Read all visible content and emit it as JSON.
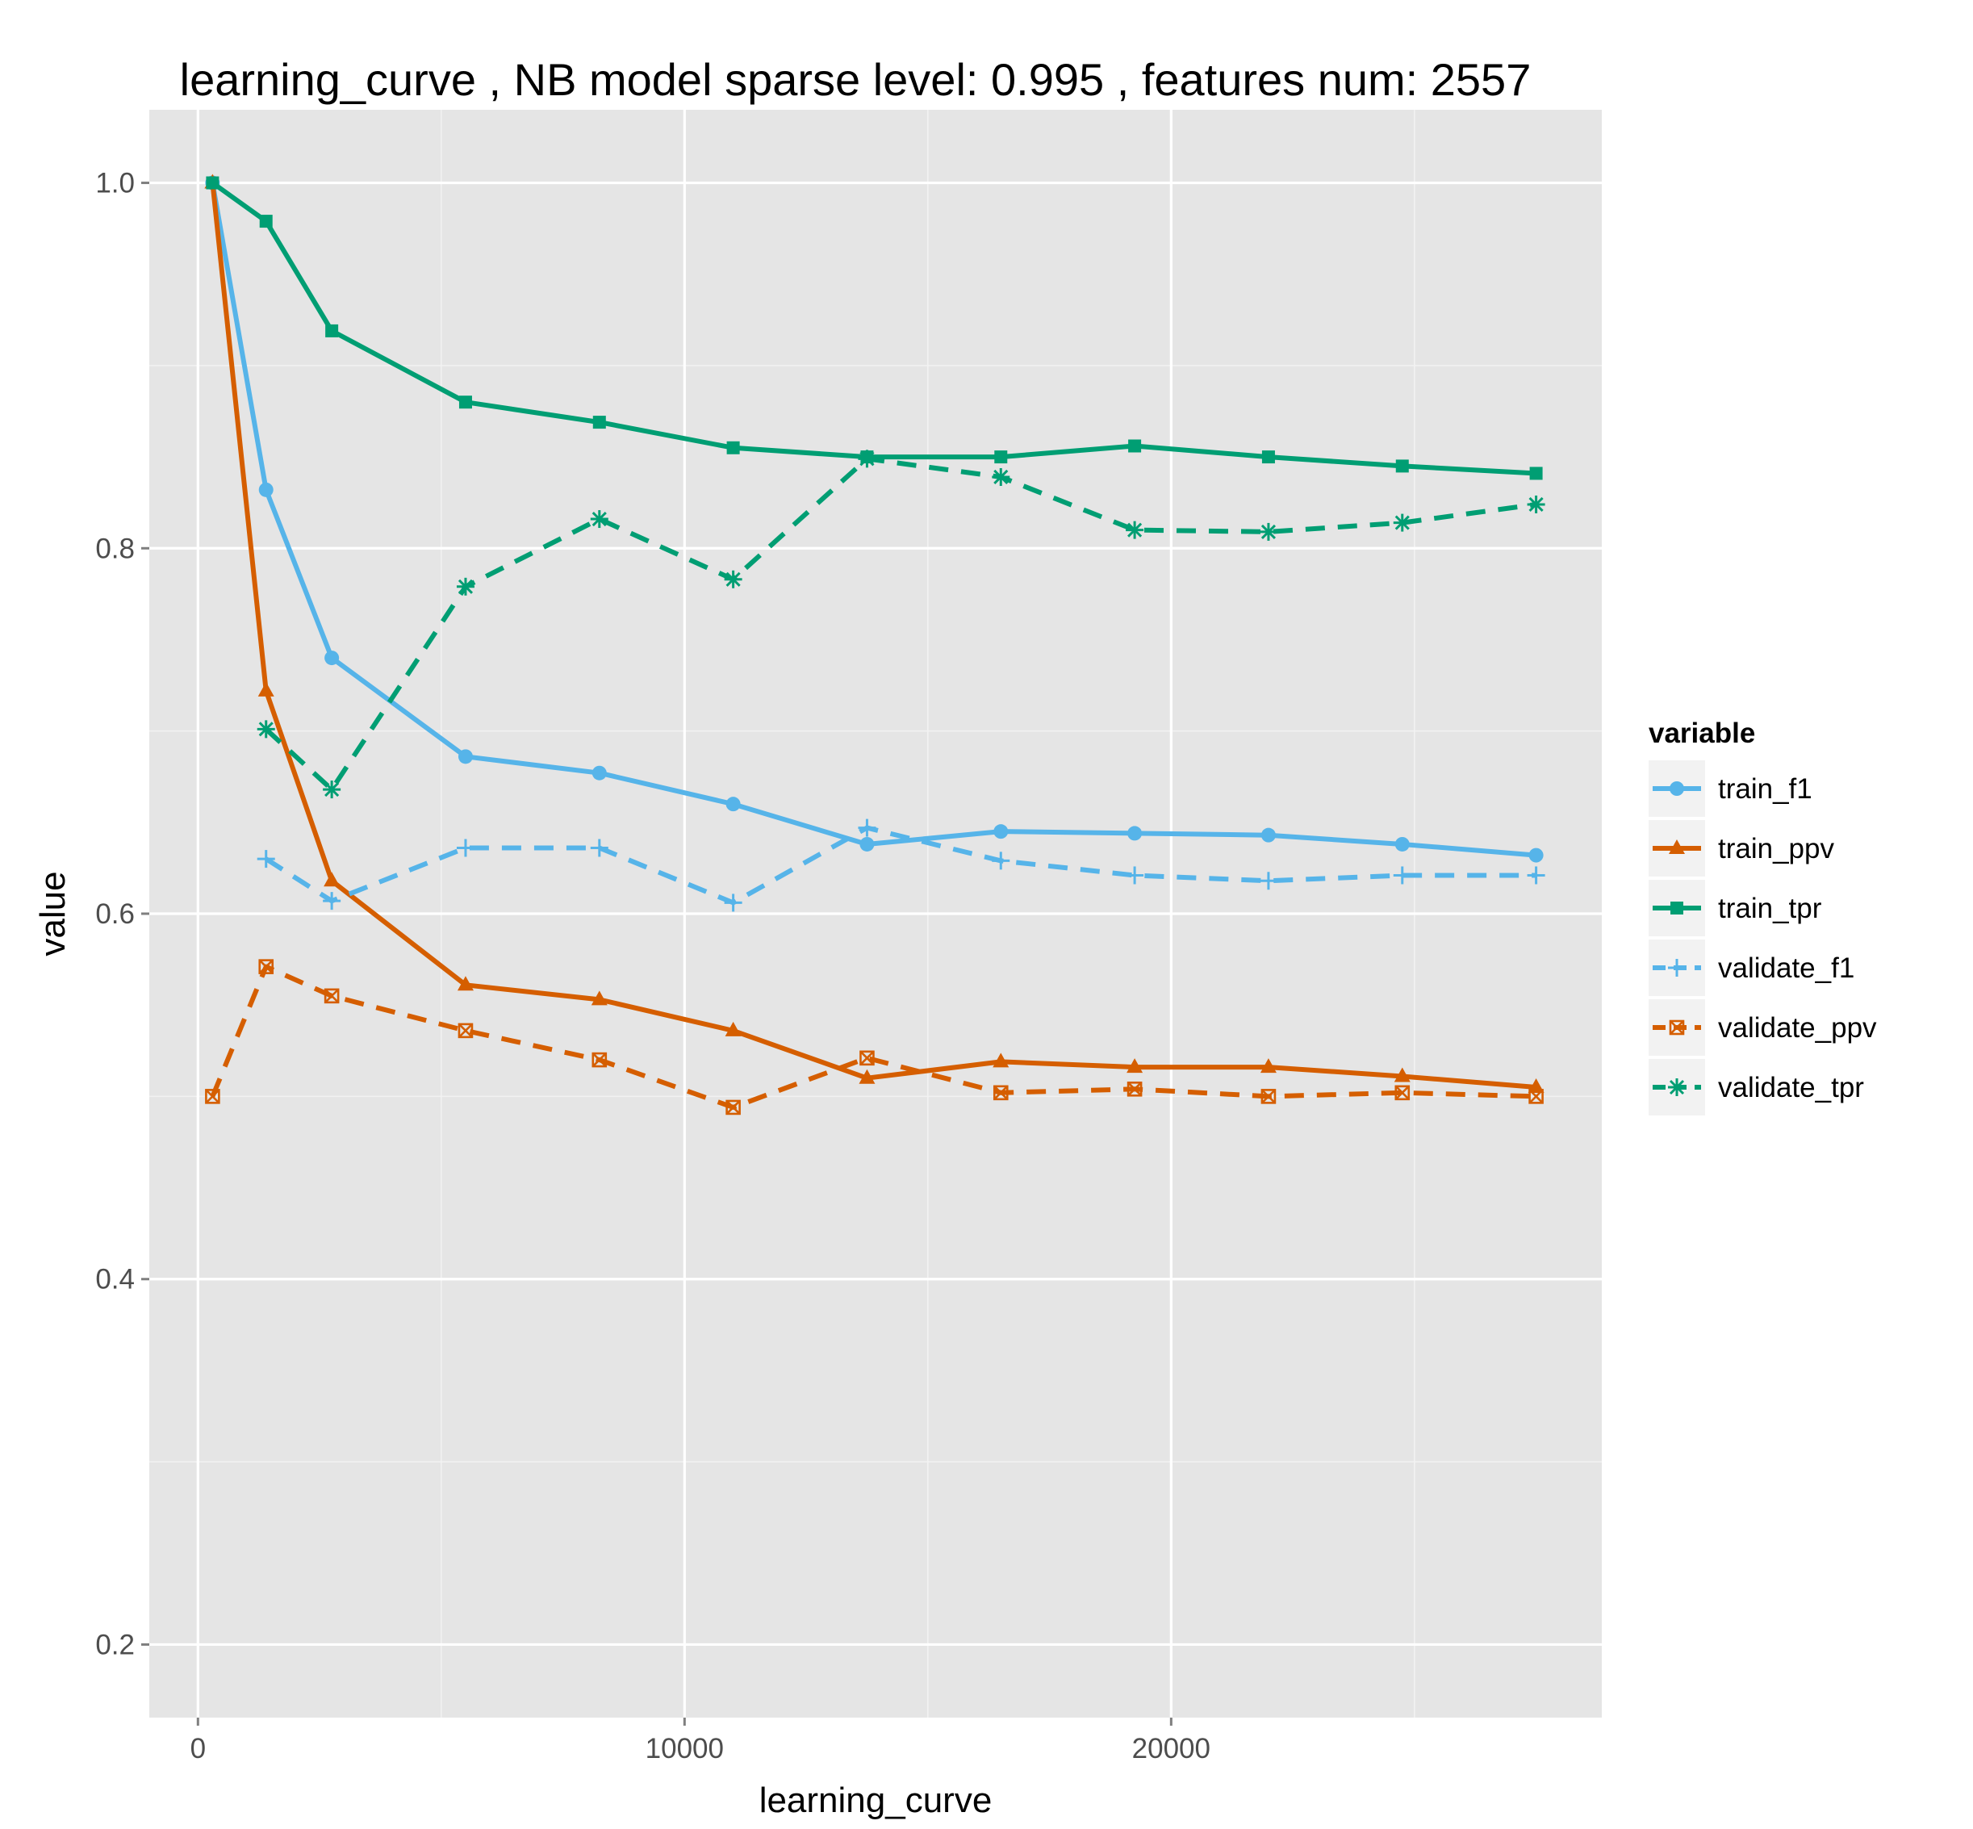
{
  "chart_data": {
    "type": "line",
    "title": "learning_curve ,  NB model sparse level: 0.995 , features num: 2557",
    "xlabel": "learning_curve",
    "ylabel": "value",
    "xlim": [
      -1000,
      28850
    ],
    "ylim": [
      0.16,
      1.04
    ],
    "x_ticks": [
      0,
      10000,
      20000
    ],
    "x_tick_labels": [
      "0",
      "10000",
      "20000"
    ],
    "x_minor_ticks": [
      5000,
      15000,
      25000
    ],
    "y_ticks": [
      0.2,
      0.4,
      0.6,
      0.8,
      1.0
    ],
    "y_tick_labels": [
      "0.2",
      "0.4",
      "0.6",
      "0.8",
      "1.0"
    ],
    "y_minor_ticks": [
      0.3,
      0.5,
      0.7,
      0.9
    ],
    "grid": true,
    "legend": {
      "title": "variable",
      "position": "right"
    },
    "series": [
      {
        "name": "train_f1",
        "color": "#56B4E9",
        "dash": "solid",
        "marker": "circle",
        "x": [
          300,
          1400,
          2750,
          5500,
          8250,
          11000,
          13750,
          16500,
          19250,
          22000,
          24750,
          27500
        ],
        "y": [
          1.0,
          0.832,
          0.74,
          0.686,
          0.677,
          0.66,
          0.638,
          0.645,
          0.644,
          0.643,
          0.638,
          0.632
        ]
      },
      {
        "name": "train_ppv",
        "color": "#D55E00",
        "dash": "solid",
        "marker": "triangle",
        "x": [
          300,
          1400,
          2750,
          5500,
          8250,
          11000,
          13750,
          16500,
          19250,
          22000,
          24750,
          27500
        ],
        "y": [
          1.0,
          0.722,
          0.618,
          0.561,
          0.553,
          0.536,
          0.51,
          0.519,
          0.516,
          0.516,
          0.511,
          0.505
        ]
      },
      {
        "name": "train_tpr",
        "color": "#009E73",
        "dash": "solid",
        "marker": "square",
        "x": [
          300,
          1400,
          2750,
          5500,
          8250,
          11000,
          13750,
          16500,
          19250,
          22000,
          24750,
          27500
        ],
        "y": [
          1.0,
          0.979,
          0.919,
          0.88,
          0.869,
          0.855,
          0.85,
          0.85,
          0.856,
          0.85,
          0.845,
          0.841
        ]
      },
      {
        "name": "validate_f1",
        "color": "#56B4E9",
        "dash": "dashed",
        "marker": "plus",
        "x": [
          1400,
          2750,
          5500,
          8250,
          11000,
          13750,
          16500,
          19250,
          22000,
          24750,
          27500
        ],
        "y": [
          0.63,
          0.607,
          0.636,
          0.636,
          0.606,
          0.647,
          0.629,
          0.621,
          0.618,
          0.621,
          0.621
        ]
      },
      {
        "name": "validate_ppv",
        "color": "#D55E00",
        "dash": "dashed",
        "marker": "square-x",
        "x": [
          300,
          1400,
          2750,
          5500,
          8250,
          11000,
          13750,
          16500,
          19250,
          22000,
          24750,
          27500
        ],
        "y": [
          0.5,
          0.571,
          0.555,
          0.536,
          0.52,
          0.494,
          0.521,
          0.502,
          0.504,
          0.5,
          0.502,
          0.5
        ]
      },
      {
        "name": "validate_tpr",
        "color": "#009E73",
        "dash": "dashed",
        "marker": "asterisk",
        "x": [
          1400,
          2750,
          5500,
          8250,
          11000,
          13750,
          16500,
          19250,
          22000,
          24750,
          27500
        ],
        "y": [
          0.701,
          0.668,
          0.779,
          0.816,
          0.783,
          0.849,
          0.839,
          0.81,
          0.809,
          0.814,
          0.824
        ]
      }
    ]
  }
}
